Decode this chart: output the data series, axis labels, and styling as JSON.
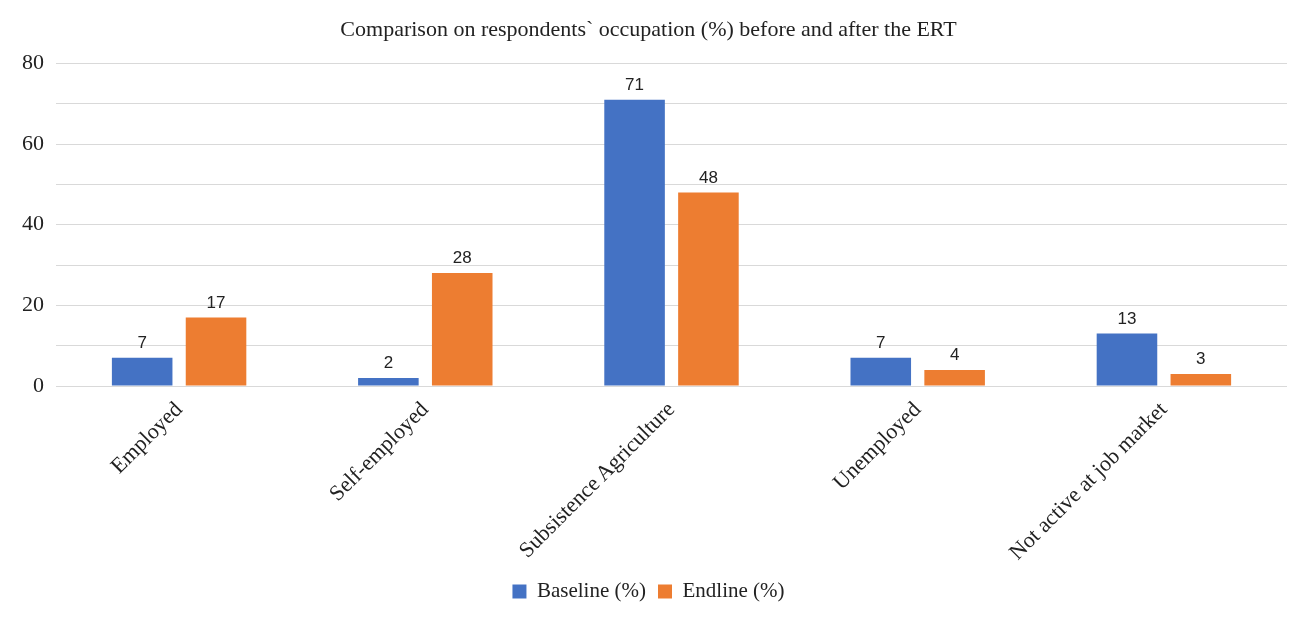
{
  "chart_data": {
    "type": "bar",
    "title": "Comparison on respondents` occupation (%) before and after the ERT",
    "categories": [
      "Employed",
      "Self-employed",
      "Subsistence Agriculture",
      "Unemployed",
      "Not active at job market"
    ],
    "series": [
      {
        "name": "Baseline (%)",
        "color": "#4472c4",
        "values": [
          7,
          2,
          71,
          7,
          13
        ]
      },
      {
        "name": "Endline (%)",
        "color": "#ed7d31",
        "values": [
          17,
          28,
          48,
          4,
          3
        ]
      }
    ],
    "ylim": [
      0,
      80
    ],
    "yticks": [
      0,
      {
        "value": 10,
        "label": null
      },
      20,
      {
        "value": 30,
        "label": null
      },
      40,
      {
        "value": 50,
        "label": null
      },
      60,
      {
        "value": 70,
        "label": null
      },
      80
    ],
    "grid": "y",
    "legend": "bottom",
    "data_labels": true
  }
}
